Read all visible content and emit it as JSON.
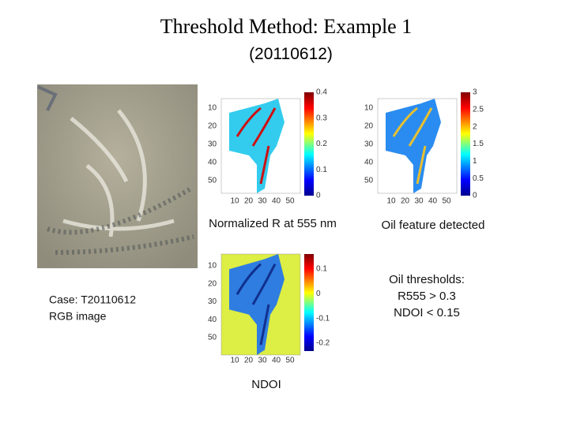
{
  "title": "Threshold Method: Example 1",
  "subtitle": "(20110612)",
  "rgb_caption": [
    "Case: T20110612",
    "RGB image"
  ],
  "panels": [
    {
      "caption": "Normalized R at 555 nm",
      "y_ticks": [
        "10",
        "20",
        "30",
        "40",
        "50"
      ],
      "x_ticks": [
        "10",
        "20",
        "30",
        "40",
        "50"
      ],
      "colorbar_ticks": [
        "0.4",
        "0.3",
        "0.2",
        "0.1",
        "0"
      ]
    },
    {
      "caption": "Oil feature detected",
      "y_ticks": [
        "10",
        "20",
        "30",
        "40",
        "50"
      ],
      "x_ticks": [
        "10",
        "20",
        "30",
        "40",
        "50"
      ],
      "colorbar_ticks": [
        "3",
        "2.5",
        "2",
        "1.5",
        "1",
        "0.5",
        "0"
      ]
    },
    {
      "caption": "NDOI",
      "y_ticks": [
        "10",
        "20",
        "30",
        "40",
        "50"
      ],
      "x_ticks": [
        "10",
        "20",
        "30",
        "40",
        "50"
      ],
      "colorbar_ticks": [
        "0.1",
        "0",
        "-0.1",
        "-0.2"
      ]
    }
  ],
  "thresholds": [
    "Oil thresholds:",
    "R555 > 0.3",
    "NDOI < 0.15"
  ]
}
